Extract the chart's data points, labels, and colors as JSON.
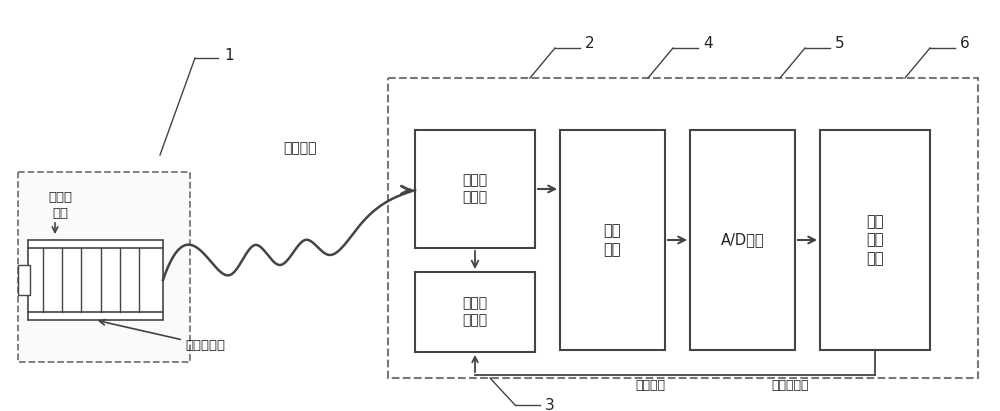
{
  "bg_color": "#ffffff",
  "line_color": "#444444",
  "dashed_color": "#777777",
  "text_color": "#222222",
  "figsize": [
    10.0,
    4.11
  ],
  "dpi": 100,
  "label_1": "1",
  "label_2": "2",
  "label_3": "3",
  "label_4": "4",
  "label_5": "5",
  "label_6": "6",
  "text_shield_cable": "屏蔽电缆",
  "text_em_shield": "电磁屏\n蔽罩",
  "text_nano_sensor": "纳米传感器",
  "text_signal_convert": "信号转\n换模块",
  "text_range_select": "量程选\n择模块",
  "text_filter": "滤波\n模块",
  "text_ad": "A/D模块",
  "text_signal_proc": "信号\n处理\n模块",
  "text_control_signal": "控制信号",
  "text_em_shield2": "电磁屏蔽罩"
}
